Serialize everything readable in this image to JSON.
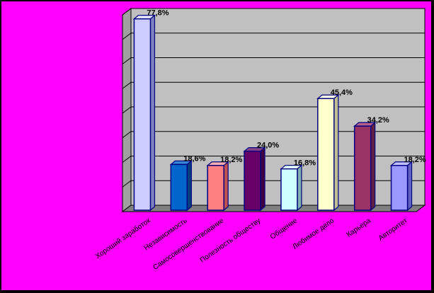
{
  "chart_data": {
    "type": "bar",
    "title": "",
    "xlabel": "",
    "ylabel": "",
    "ylim": [
      0,
      80
    ],
    "grid": true,
    "legend": "none",
    "categories": [
      "Хороший заработок",
      "Независимость",
      "Самосовершенствование",
      "Полезность обществу",
      "Общение",
      "Любимое дело",
      "Карьера",
      "Авторитет"
    ],
    "values": [
      77.8,
      18.6,
      18.2,
      24.0,
      16.8,
      45.4,
      34.2,
      18.2
    ],
    "value_labels": [
      "77,8%",
      "18,6%",
      "18,2%",
      "24,0%",
      "16,8%",
      "45,4%",
      "34,2%",
      "18,2%"
    ],
    "label_visible": [
      true,
      true,
      true,
      true,
      true,
      true,
      true,
      true
    ],
    "colors": {
      "background": "#ff00ff",
      "border": "#000000",
      "wall": "#c0c0c0",
      "floor": "#808080",
      "gridline": "#000000"
    },
    "bar_colors": [
      {
        "front": "#ccccff",
        "side": "#8080c0",
        "top": "#e6e6ff"
      },
      {
        "front": "#0066cc",
        "side": "#003f80",
        "top": "#3385d6"
      },
      {
        "front": "#ff8080",
        "side": "#c05050",
        "top": "#ffb0b0"
      },
      {
        "front": "#660066",
        "side": "#400040",
        "top": "#884488"
      },
      {
        "front": "#ccffff",
        "side": "#80b0b0",
        "top": "#e6ffff"
      },
      {
        "front": "#ffffcc",
        "side": "#c0c090",
        "top": "#ffffe6"
      },
      {
        "front": "#993366",
        "side": "#602040",
        "top": "#b85c8a"
      },
      {
        "front": "#9999ff",
        "side": "#6060c0",
        "top": "#c0c0ff"
      }
    ]
  }
}
